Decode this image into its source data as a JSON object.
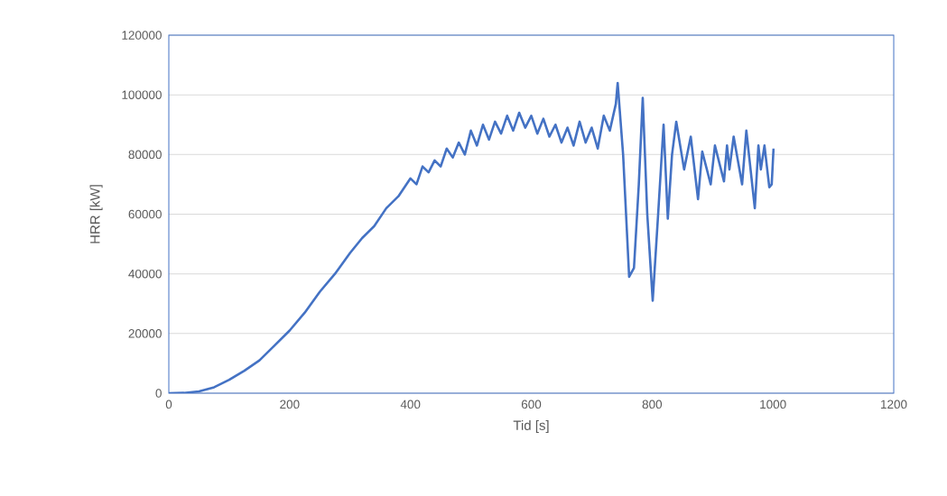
{
  "chart_data": {
    "type": "line",
    "xlabel": "Tid [s]",
    "ylabel": "HRR [kW]",
    "series": [
      {
        "color": "#4472c4",
        "x": [
          0,
          25,
          50,
          75,
          100,
          125,
          150,
          175,
          200,
          225,
          250,
          275,
          300,
          320,
          340,
          360,
          380,
          400,
          410,
          420,
          430,
          440,
          450,
          460,
          470,
          480,
          490,
          500,
          510,
          520,
          530,
          540,
          550,
          560,
          570,
          580,
          590,
          600,
          610,
          620,
          630,
          640,
          650,
          660,
          670,
          680,
          690,
          700,
          710,
          720,
          730,
          740,
          743,
          752,
          762,
          770,
          778,
          784.5,
          792,
          801,
          810,
          819,
          826,
          833,
          840,
          853,
          864,
          876,
          883,
          897,
          904,
          919,
          924,
          928,
          935,
          949,
          956,
          970,
          976,
          980,
          986,
          994,
          998,
          1001
        ],
        "values": [
          0,
          100,
          600,
          2000,
          4500,
          7500,
          11000,
          16000,
          21000,
          27000,
          34000,
          40000,
          47000,
          52000,
          56000,
          62000,
          66000,
          72000,
          70000,
          76000,
          74000,
          78000,
          76000,
          82000,
          79000,
          84000,
          80000,
          88000,
          83000,
          90000,
          85000,
          91000,
          87000,
          93000,
          88000,
          94000,
          89000,
          93000,
          87000,
          92000,
          86000,
          90000,
          84000,
          89000,
          83000,
          91000,
          84000,
          89000,
          82000,
          93000,
          88000,
          97000,
          104000,
          80000,
          39000,
          42000,
          70000,
          99000,
          60000,
          31000,
          60000,
          90000,
          58500,
          80000,
          91000,
          75000,
          86000,
          65000,
          81000,
          70000,
          83000,
          71000,
          83000,
          75000,
          86000,
          70000,
          88000,
          62000,
          83000,
          75000,
          83000,
          69000,
          70000,
          82000
        ]
      }
    ],
    "xlim": [
      0,
      1200
    ],
    "xticks": [
      0,
      200,
      400,
      600,
      800,
      1000,
      1200
    ],
    "ylim": [
      0,
      120000
    ],
    "yticks": [
      0,
      20000,
      40000,
      60000,
      80000,
      100000,
      120000
    ],
    "grid": "y",
    "legend": false,
    "marker": "none",
    "line_style": "solid"
  }
}
